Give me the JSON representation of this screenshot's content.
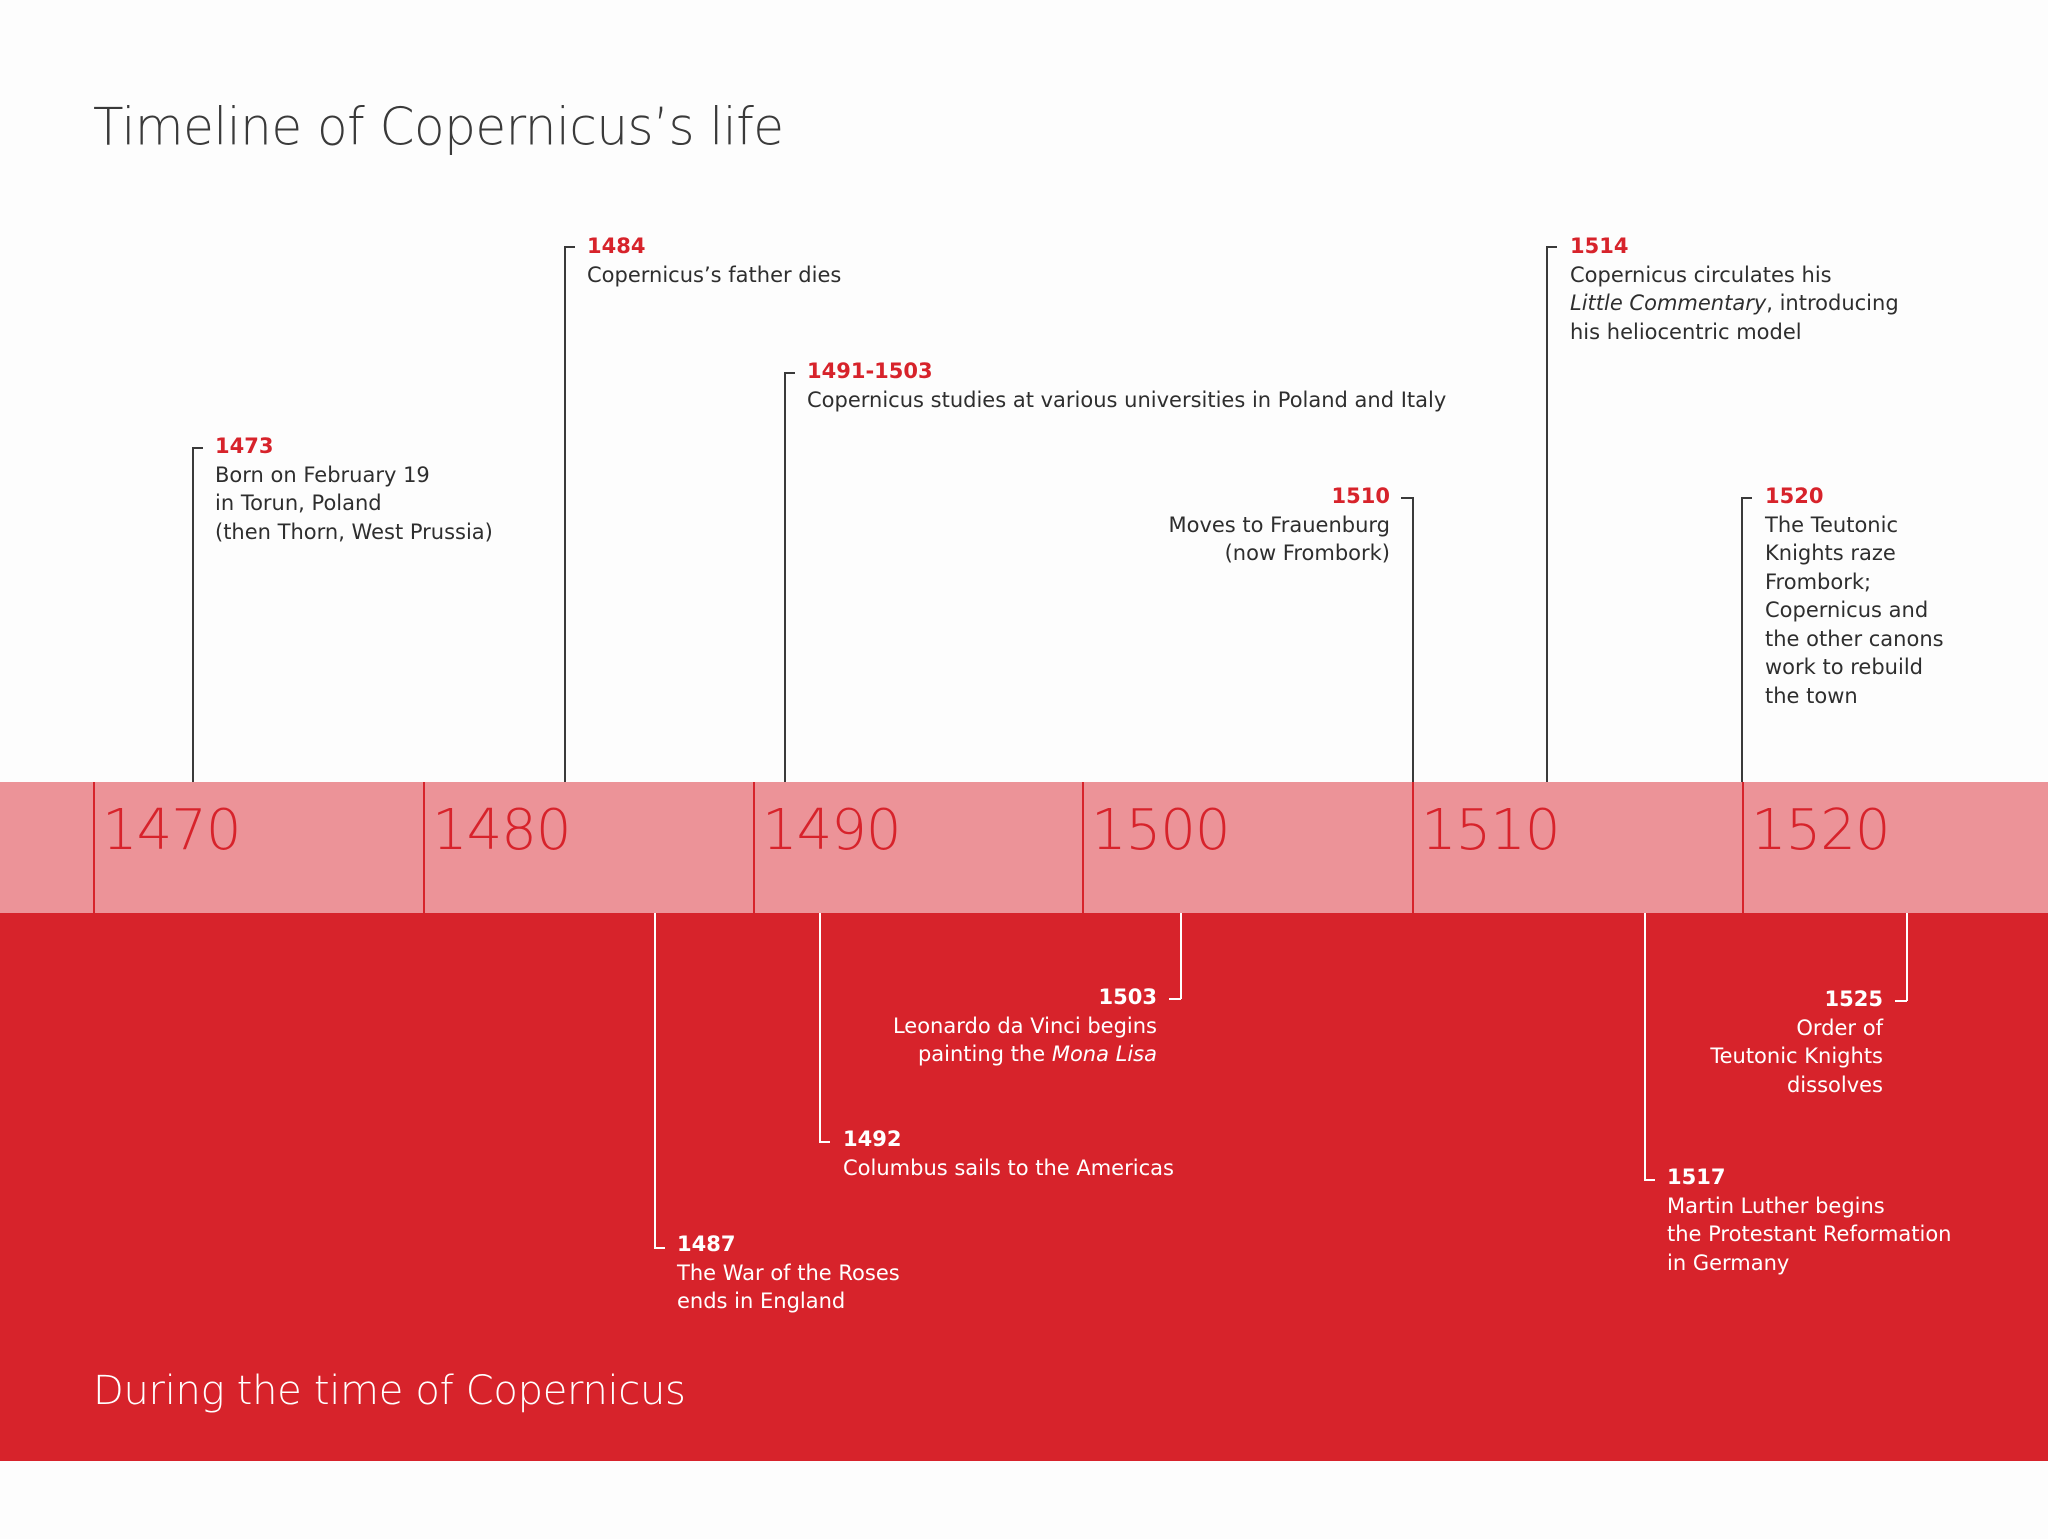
{
  "title": "Timeline of Copernicus’s life",
  "section_label": "During the time of Copernicus",
  "colors": {
    "accent": "#d7232b",
    "axis_band": "#ec9398",
    "text_dark": "#2e2e2e"
  },
  "decades": [
    "1470",
    "1480",
    "1490",
    "1500",
    "1510",
    "1520"
  ],
  "life_events": [
    {
      "year": "1473",
      "lines": [
        "Born on February 19",
        "in Torun, Poland",
        "(then Thorn, West Prussia)"
      ]
    },
    {
      "year": "1484",
      "lines": [
        "Copernicus’s father dies"
      ]
    },
    {
      "year": "1491-1503",
      "lines": [
        "Copernicus studies at various universities in Poland and Italy"
      ]
    },
    {
      "year": "1510",
      "lines": [
        "Moves to Frauenburg",
        "(now Frombork)"
      ]
    },
    {
      "year": "1514",
      "lines": [
        "Copernicus circulates his",
        "Little Commentary, introducing",
        "his heliocentric model"
      ],
      "italic": "Little Commentary",
      "italic_suffix": ", introducing"
    },
    {
      "year": "1520",
      "lines": [
        "The Teutonic",
        "Knights raze",
        "Frombork;",
        "Copernicus and",
        "the other canons",
        "work to rebuild",
        "the town"
      ]
    }
  ],
  "world_events": [
    {
      "year": "1487",
      "lines": [
        "The War of the Roses",
        "ends in England"
      ]
    },
    {
      "year": "1492",
      "lines": [
        "Columbus sails to the Americas"
      ]
    },
    {
      "year": "1503",
      "lines": [
        "Leonardo da Vinci begins",
        "painting the Mona Lisa"
      ],
      "italic": "Mona Lisa",
      "italic_prefix": "painting the "
    },
    {
      "year": "1517",
      "lines": [
        "Martin Luther begins",
        "the Protestant Reformation",
        "in Germany"
      ]
    },
    {
      "year": "1525",
      "lines": [
        "Order of",
        "Teutonic Knights",
        "dissolves"
      ]
    }
  ]
}
